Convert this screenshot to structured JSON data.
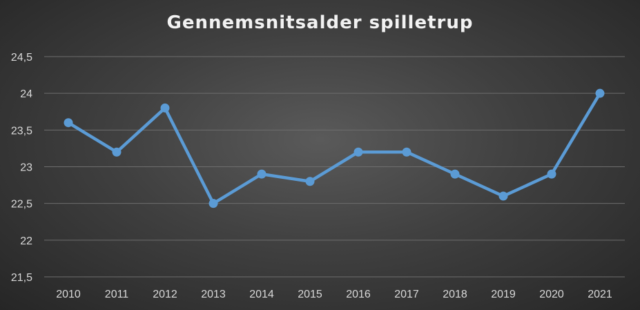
{
  "chart_data": {
    "type": "line",
    "title": "Gennemsnitsalder spilletrup",
    "xlabel": "",
    "ylabel": "",
    "categories": [
      "2010",
      "2011",
      "2012",
      "2013",
      "2014",
      "2015",
      "2016",
      "2017",
      "2018",
      "2019",
      "2020",
      "2021"
    ],
    "series": [
      {
        "values": [
          23.6,
          23.2,
          23.8,
          22.5,
          22.9,
          22.8,
          23.2,
          23.2,
          22.9,
          22.6,
          22.9,
          24.0
        ]
      }
    ],
    "ylim": [
      21.5,
      24.5
    ],
    "yticks": [
      "21,5",
      "22",
      "22,5",
      "23",
      "23,5",
      "24",
      "24,5"
    ],
    "ytick_values": [
      21.5,
      22,
      22.5,
      23,
      23.5,
      24,
      24.5
    ],
    "grid": true,
    "legend": "none",
    "colors": {
      "line": "#5b9bd5",
      "grid": "#6e6e6e",
      "text": "#d9d9d9",
      "title": "#f2f2f2"
    }
  }
}
